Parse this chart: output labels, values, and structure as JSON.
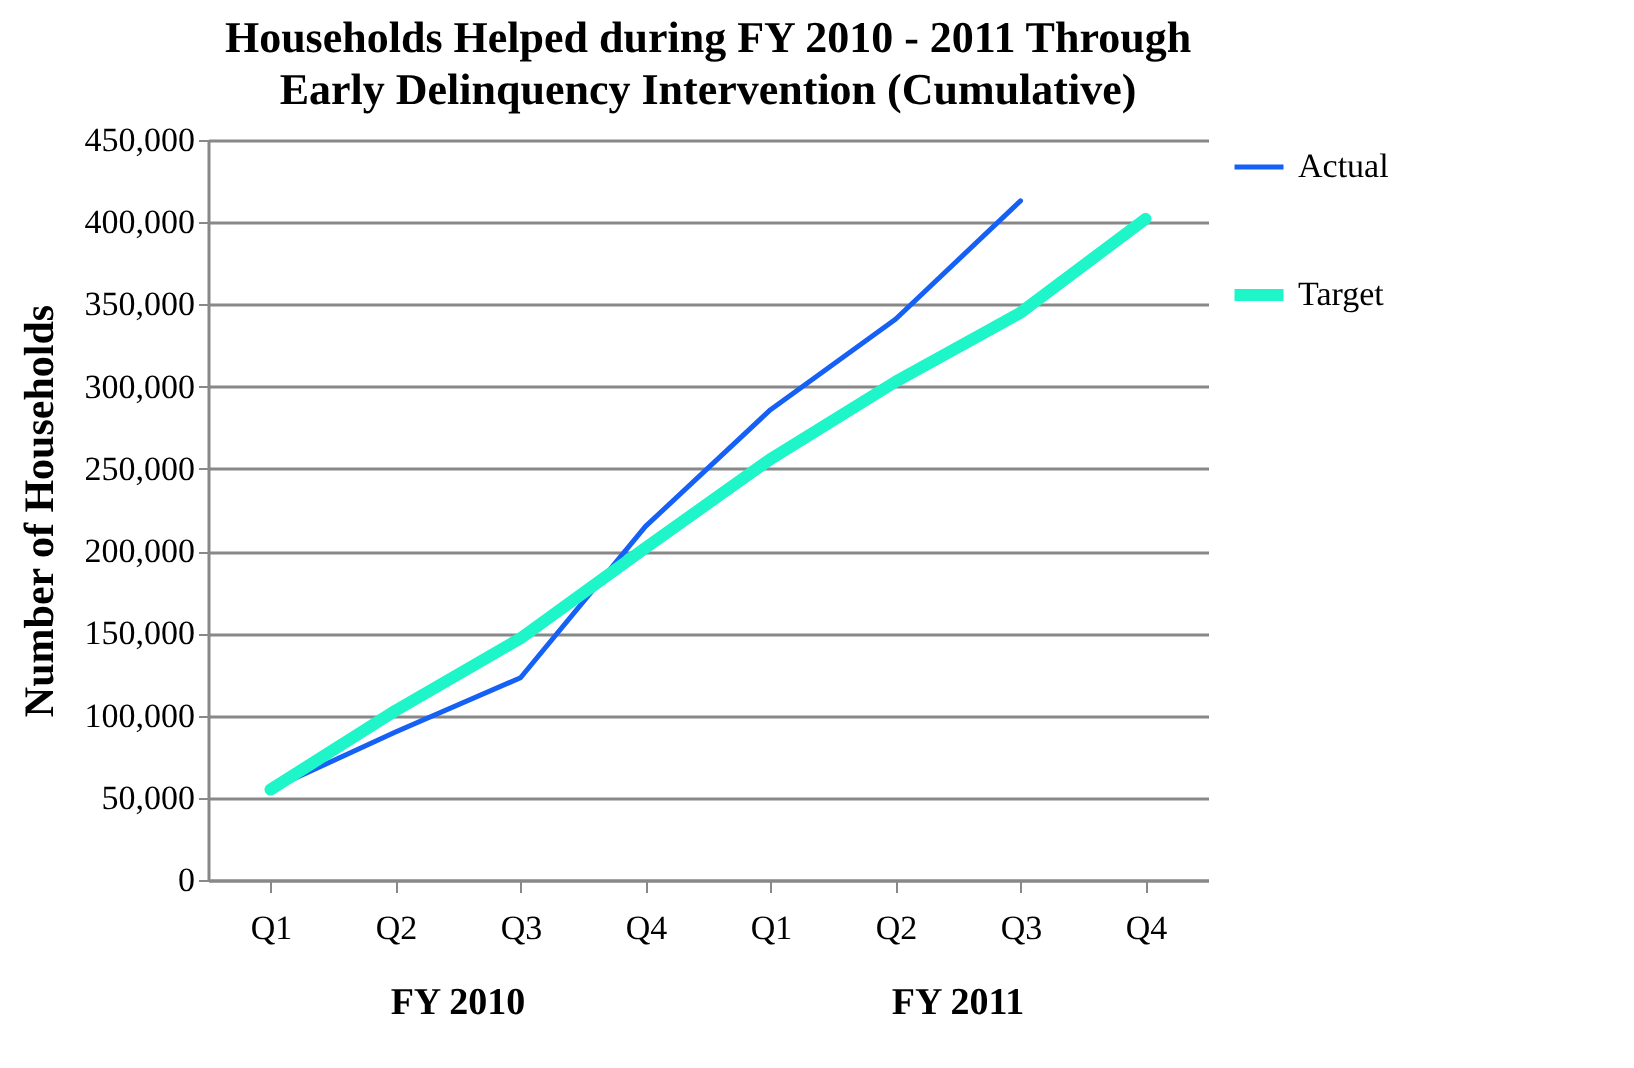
{
  "chart_data": {
    "type": "line",
    "title": "Households Helped during FY 2010 - 2011 Through Early Delinquency Intervention (Cumulative)",
    "ylabel": "Number of Households",
    "categories": [
      "Q1",
      "Q2",
      "Q3",
      "Q4",
      "Q1",
      "Q2",
      "Q3",
      "Q4"
    ],
    "annotations": [
      "FY 2010",
      "FY 2011"
    ],
    "series": [
      {
        "name": "Actual",
        "color": "#1560f5",
        "values": [
          55000,
          90000,
          123000,
          215000,
          286000,
          341000,
          413000,
          null
        ]
      },
      {
        "name": "Target",
        "color": "#1ef5c8",
        "values": [
          55000,
          103000,
          147000,
          202000,
          256000,
          303000,
          345000,
          402000
        ]
      }
    ],
    "ylim": [
      0,
      450000
    ],
    "yticks": [
      0,
      {
        "value": 50000,
        "label": "50,000"
      },
      {
        "value": 100000,
        "label": "100,000"
      },
      {
        "value": 150000,
        "label": "150,000"
      },
      {
        "value": 200000,
        "label": "200,000"
      },
      {
        "value": 250000,
        "label": "250,000"
      },
      {
        "value": 300000,
        "label": "300,000"
      },
      {
        "value": 350000,
        "label": "350,000"
      },
      {
        "value": 400000,
        "label": "400,000"
      },
      {
        "value": 450000,
        "label": "450,000"
      }
    ],
    "grid": "y",
    "legend": "right",
    "marker": "none",
    "line_style": "solid"
  }
}
